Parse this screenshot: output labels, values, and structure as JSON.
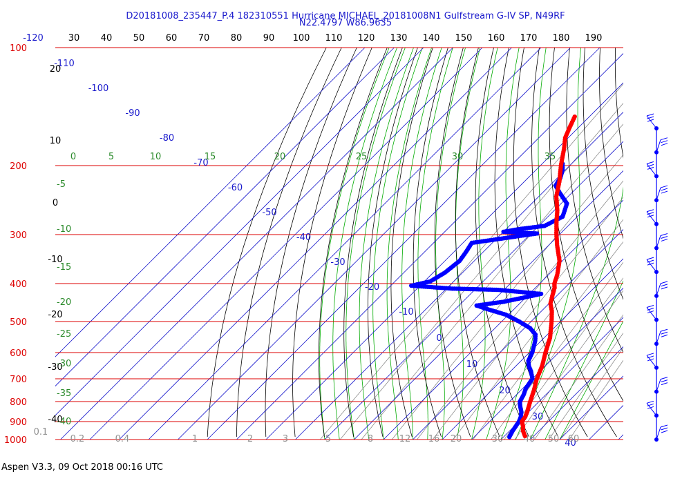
{
  "title_line1": "D20181008_235447_P.4 182310551 Hurricane MICHAEL_20181008N1 Gulfstream G-IV SP, N49RF",
  "title_line2": "N22.4797 W86.9635",
  "footer": "Aspen V3.3, 09 Oct 2018  00:16 UTC",
  "colors": {
    "isobar": "#dd0000",
    "isotherm": "#1a1acc",
    "dry_adiabat": "#000000",
    "moist_adiabat": "#00aa00",
    "mixing_ratio": "#808080",
    "temperature": "#ff0000",
    "dewpoint": "#0000ff",
    "wind_barbs": "#0000ff",
    "title": "#1a1acc"
  },
  "chart_data": {
    "type": "skew-t",
    "pressure_axis": {
      "levels_hpa": [
        100,
        200,
        300,
        400,
        500,
        600,
        700,
        800,
        900,
        1000
      ],
      "labels": [
        "100",
        "200",
        "300",
        "400",
        "500",
        "600",
        "700",
        "800",
        "900",
        "1000"
      ]
    },
    "top_temperature_labels": [
      "-120",
      "30",
      "40",
      "50",
      "60",
      "70",
      "80",
      "90",
      "100",
      "110",
      "120",
      "130",
      "140",
      "150",
      "160",
      "170",
      "180",
      "190"
    ],
    "isotherm_labels": [
      "-110",
      "-100",
      "-90",
      "-80",
      "-70",
      "-60",
      "-50",
      "-40",
      "-30",
      "-20",
      "-10",
      "0",
      "10",
      "20",
      "30",
      "40"
    ],
    "dry_adiabat_labels": [
      "20",
      "10",
      "0",
      "-10",
      "-20",
      "-30",
      "-40"
    ],
    "moist_adiabat_labels": [
      "0",
      "5",
      "10",
      "15",
      "20",
      "25",
      "30",
      "35",
      "-5",
      "-10",
      "-15",
      "-20",
      "-25",
      "-30",
      "-35",
      "-40"
    ],
    "mixing_ratio_labels": [
      "0.1",
      "0.2",
      "0.4",
      "1",
      "2",
      "3",
      "5",
      "8",
      "12",
      "16",
      "20",
      "30",
      "40",
      "50",
      "60"
    ],
    "temperature_profile": {
      "name": "Temperature",
      "points": [
        [
          980,
          27
        ],
        [
          950,
          24.5
        ],
        [
          925,
          23
        ],
        [
          900,
          21
        ],
        [
          875,
          20.5
        ],
        [
          850,
          19.5
        ],
        [
          800,
          17
        ],
        [
          750,
          14.5
        ],
        [
          700,
          11.5
        ],
        [
          650,
          9
        ],
        [
          600,
          5.5
        ],
        [
          550,
          2
        ],
        [
          500,
          -3
        ],
        [
          470,
          -6.5
        ],
        [
          450,
          -9.5
        ],
        [
          430,
          -11.5
        ],
        [
          410,
          -13.5
        ],
        [
          400,
          -15
        ],
        [
          380,
          -17
        ],
        [
          350,
          -21
        ],
        [
          320,
          -27
        ],
        [
          300,
          -31
        ],
        [
          280,
          -35
        ],
        [
          260,
          -39
        ],
        [
          240,
          -44
        ],
        [
          220,
          -48
        ],
        [
          200,
          -53
        ],
        [
          180,
          -58
        ],
        [
          170,
          -61
        ],
        [
          160,
          -63
        ],
        [
          150,
          -65
        ]
      ]
    },
    "dewpoint_profile": {
      "name": "Dewpoint",
      "points": [
        [
          985,
          22
        ],
        [
          950,
          21
        ],
        [
          925,
          20.5
        ],
        [
          900,
          20
        ],
        [
          875,
          19
        ],
        [
          850,
          17.5
        ],
        [
          820,
          15
        ],
        [
          800,
          13.5
        ],
        [
          770,
          12.5
        ],
        [
          740,
          11
        ],
        [
          700,
          10
        ],
        [
          670,
          7
        ],
        [
          650,
          4.5
        ],
        [
          630,
          2.5
        ],
        [
          600,
          1
        ],
        [
          560,
          -2
        ],
        [
          540,
          -4
        ],
        [
          520,
          -8
        ],
        [
          500,
          -14
        ],
        [
          480,
          -21
        ],
        [
          465,
          -29
        ],
        [
          455,
          -34
        ],
        [
          445,
          -26
        ],
        [
          435,
          -21
        ],
        [
          425,
          -16
        ],
        [
          415,
          -32
        ],
        [
          412,
          -48
        ],
        [
          405,
          -63
        ],
        [
          395,
          -58
        ],
        [
          375,
          -56
        ],
        [
          350,
          -55
        ],
        [
          330,
          -56
        ],
        [
          315,
          -57
        ],
        [
          305,
          -46
        ],
        [
          298,
          -38
        ],
        [
          295,
          -50
        ],
        [
          290,
          -45
        ],
        [
          285,
          -38
        ],
        [
          270,
          -35
        ],
        [
          250,
          -38
        ],
        [
          235,
          -44
        ],
        [
          225,
          -48
        ],
        [
          215,
          -49
        ],
        [
          205,
          -51
        ],
        [
          198,
          -53
        ]
      ]
    },
    "wind_barb_stations": 14
  }
}
